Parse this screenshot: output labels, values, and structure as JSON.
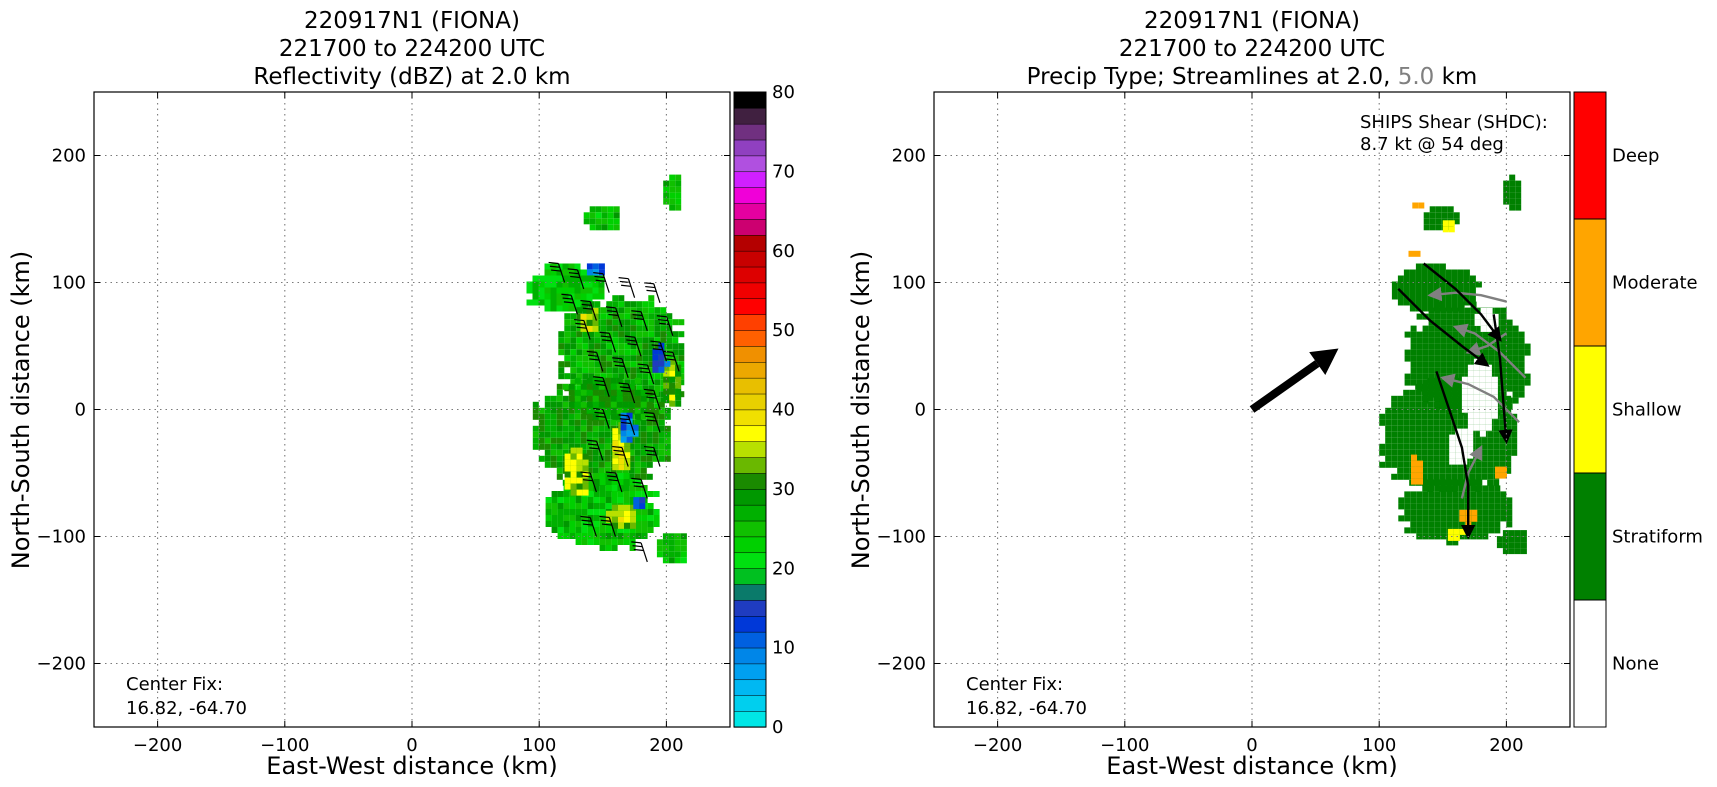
{
  "chart_data": [
    {
      "type": "heatmap",
      "title_lines": [
        "220917N1 (FIONA)",
        "221700 to 224200 UTC",
        "Reflectivity (dBZ) at 2.0 km"
      ],
      "xlabel": "East-West distance (km)",
      "ylabel": "North-South distance (km)",
      "xlim": [
        -250,
        250
      ],
      "ylim": [
        -250,
        250
      ],
      "xticks": [
        -200,
        -100,
        0,
        100,
        200
      ],
      "yticks": [
        -200,
        -100,
        0,
        100,
        200
      ],
      "xtick_labels": [
        "−200",
        "−100",
        "0",
        "100",
        "200"
      ],
      "ytick_labels": [
        "−200",
        "−100",
        "0",
        "100",
        "200"
      ],
      "grid": true,
      "annotation": [
        "Center Fix:",
        "16.82, -64.70"
      ],
      "colorbar": {
        "range": [
          0,
          80
        ],
        "ticks": [
          0,
          10,
          20,
          30,
          40,
          50,
          60,
          70,
          80
        ],
        "tick_labels": [
          "0",
          "10",
          "20",
          "30",
          "40",
          "50",
          "60",
          "70",
          "80"
        ],
        "colors": [
          "#00e6e6",
          "#00cfee",
          "#00b8f2",
          "#00a0f0",
          "#0086e8",
          "#0060e0",
          "#0038d8",
          "#1f3cc0",
          "#0a7a6a",
          "#00c020",
          "#00e010",
          "#00d000",
          "#10c000",
          "#00b000",
          "#009800",
          "#1a8a00",
          "#6ab800",
          "#b8e000",
          "#ffff00",
          "#f0e000",
          "#e8d000",
          "#e8bf00",
          "#eca800",
          "#f09000",
          "#ff6000",
          "#ff4000",
          "#ff0000",
          "#f00000",
          "#dd0000",
          "#c80000",
          "#b40000",
          "#cc0070",
          "#e400a0",
          "#f000d8",
          "#d020ff",
          "#b050e0",
          "#9040c0",
          "#703080",
          "#402040",
          "#000000"
        ]
      },
      "echo_field": [
        {
          "x": 150,
          "y": 150,
          "w": 30,
          "h": 20,
          "dbz": 25
        },
        {
          "x": 205,
          "y": 170,
          "w": 15,
          "h": 30,
          "dbz": 25
        },
        {
          "x": 120,
          "y": 95,
          "w": 60,
          "h": 40,
          "dbz": 24
        },
        {
          "x": 165,
          "y": 40,
          "w": 100,
          "h": 100,
          "dbz": 27
        },
        {
          "x": 150,
          "y": -20,
          "w": 110,
          "h": 90,
          "dbz": 28
        },
        {
          "x": 150,
          "y": -80,
          "w": 90,
          "h": 60,
          "dbz": 25
        },
        {
          "x": 205,
          "y": -110,
          "w": 25,
          "h": 25,
          "dbz": 25
        },
        {
          "x": 165,
          "y": -30,
          "w": 15,
          "h": 40,
          "dbz": 36
        },
        {
          "x": 130,
          "y": -50,
          "w": 20,
          "h": 40,
          "dbz": 34
        },
        {
          "x": 165,
          "y": -85,
          "w": 25,
          "h": 20,
          "dbz": 35
        },
        {
          "x": 140,
          "y": 70,
          "w": 15,
          "h": 20,
          "dbz": 35
        },
        {
          "x": 205,
          "y": 20,
          "w": 15,
          "h": 40,
          "dbz": 33
        },
        {
          "x": 170,
          "y": -15,
          "w": 12,
          "h": 25,
          "dbz": 10
        },
        {
          "x": 195,
          "y": 40,
          "w": 12,
          "h": 25,
          "dbz": 12
        },
        {
          "x": 145,
          "y": 110,
          "w": 15,
          "h": 10,
          "dbz": 11
        },
        {
          "x": 180,
          "y": -75,
          "w": 12,
          "h": 12,
          "dbz": 12
        }
      ],
      "wind_barbs": [
        {
          "x": 120,
          "y": 100
        },
        {
          "x": 135,
          "y": 95
        },
        {
          "x": 155,
          "y": 92
        },
        {
          "x": 175,
          "y": 88
        },
        {
          "x": 195,
          "y": 84
        },
        {
          "x": 130,
          "y": 75
        },
        {
          "x": 145,
          "y": 70
        },
        {
          "x": 165,
          "y": 65
        },
        {
          "x": 185,
          "y": 62
        },
        {
          "x": 205,
          "y": 58
        },
        {
          "x": 140,
          "y": 55
        },
        {
          "x": 160,
          "y": 45
        },
        {
          "x": 180,
          "y": 42
        },
        {
          "x": 200,
          "y": 38
        },
        {
          "x": 150,
          "y": 30
        },
        {
          "x": 170,
          "y": 25
        },
        {
          "x": 190,
          "y": 20
        },
        {
          "x": 210,
          "y": 30
        },
        {
          "x": 155,
          "y": 10
        },
        {
          "x": 175,
          "y": 5
        },
        {
          "x": 195,
          "y": 0
        },
        {
          "x": 155,
          "y": -15
        },
        {
          "x": 175,
          "y": -20
        },
        {
          "x": 195,
          "y": -18
        },
        {
          "x": 150,
          "y": -40
        },
        {
          "x": 170,
          "y": -45
        },
        {
          "x": 195,
          "y": -45
        },
        {
          "x": 145,
          "y": -65
        },
        {
          "x": 165,
          "y": -65
        },
        {
          "x": 185,
          "y": -70
        },
        {
          "x": 145,
          "y": -100
        },
        {
          "x": 160,
          "y": -100
        },
        {
          "x": 185,
          "y": -120
        }
      ]
    },
    {
      "type": "heatmap",
      "title_lines": [
        "220917N1 (FIONA)",
        "221700 to 224200 UTC"
      ],
      "title_line3_parts": [
        "Precip Type; Streamlines at 2.0, ",
        "5.0",
        " km"
      ],
      "title_line3_colors": [
        "#000000",
        "#808080",
        "#000000"
      ],
      "xlabel": "East-West distance (km)",
      "ylabel": "North-South distance (km)",
      "xlim": [
        -250,
        250
      ],
      "ylim": [
        -250,
        250
      ],
      "xticks": [
        -200,
        -100,
        0,
        100,
        200
      ],
      "yticks": [
        -200,
        -100,
        0,
        100,
        200
      ],
      "xtick_labels": [
        "−200",
        "−100",
        "0",
        "100",
        "200"
      ],
      "ytick_labels": [
        "−200",
        "−100",
        "0",
        "100",
        "200"
      ],
      "grid": true,
      "annotation": [
        "Center Fix:",
        "16.82, -64.70"
      ],
      "shear_text": [
        "SHIPS Shear (SHDC):",
        "8.7 kt @ 54 deg"
      ],
      "shear_vector": {
        "from": [
          0,
          0
        ],
        "to": [
          68,
          48
        ]
      },
      "colorbar": {
        "categories": [
          "None",
          "Stratiform",
          "Shallow",
          "Moderate",
          "Deep"
        ],
        "colors": [
          "#ffffff",
          "#008000",
          "#ffff00",
          "#ffa500",
          "#ff0000"
        ]
      },
      "precip_field": [
        {
          "x": 150,
          "y": 150,
          "w": 30,
          "h": 20,
          "cat": "Stratiform"
        },
        {
          "x": 205,
          "y": 170,
          "w": 15,
          "h": 30,
          "cat": "Stratiform"
        },
        {
          "x": 145,
          "y": 95,
          "w": 70,
          "h": 40,
          "cat": "Stratiform"
        },
        {
          "x": 170,
          "y": 40,
          "w": 100,
          "h": 90,
          "cat": "Stratiform"
        },
        {
          "x": 155,
          "y": -20,
          "w": 110,
          "h": 90,
          "cat": "Stratiform"
        },
        {
          "x": 160,
          "y": -80,
          "w": 90,
          "h": 50,
          "cat": "Stratiform"
        },
        {
          "x": 205,
          "y": -105,
          "w": 25,
          "h": 20,
          "cat": "Stratiform"
        },
        {
          "x": 180,
          "y": 10,
          "w": 30,
          "h": 60,
          "cat": "None"
        },
        {
          "x": 165,
          "y": -30,
          "w": 20,
          "h": 30,
          "cat": "None"
        },
        {
          "x": 185,
          "y": 70,
          "w": 20,
          "h": 20,
          "cat": "None"
        },
        {
          "x": 130,
          "y": -48,
          "w": 10,
          "h": 25,
          "cat": "Moderate"
        },
        {
          "x": 170,
          "y": -85,
          "w": 14,
          "h": 12,
          "cat": "Moderate"
        },
        {
          "x": 195,
          "y": -50,
          "w": 8,
          "h": 10,
          "cat": "Moderate"
        },
        {
          "x": 127,
          "y": 122,
          "w": 8,
          "h": 6,
          "cat": "Moderate"
        },
        {
          "x": 160,
          "y": -98,
          "w": 12,
          "h": 8,
          "cat": "Shallow"
        },
        {
          "x": 130,
          "y": 160,
          "w": 8,
          "h": 6,
          "cat": "Moderate"
        },
        {
          "x": 155,
          "y": 145,
          "w": 10,
          "h": 8,
          "cat": "Shallow"
        }
      ],
      "streamlines_2km": [
        [
          [
            135,
            115
          ],
          [
            160,
            95
          ],
          [
            180,
            75
          ],
          [
            195,
            55
          ]
        ],
        [
          [
            115,
            95
          ],
          [
            140,
            70
          ],
          [
            165,
            50
          ],
          [
            185,
            35
          ]
        ],
        [
          [
            145,
            30
          ],
          [
            155,
            0
          ],
          [
            165,
            -30
          ],
          [
            170,
            -60
          ],
          [
            170,
            -100
          ]
        ],
        [
          [
            190,
            75
          ],
          [
            195,
            40
          ],
          [
            198,
            0
          ],
          [
            200,
            -25
          ]
        ]
      ],
      "streamlines_5km": [
        [
          [
            200,
            85
          ],
          [
            180,
            90
          ],
          [
            160,
            92
          ],
          [
            140,
            90
          ]
        ],
        [
          [
            215,
            25
          ],
          [
            195,
            45
          ],
          [
            175,
            60
          ],
          [
            160,
            65
          ]
        ],
        [
          [
            210,
            -10
          ],
          [
            190,
            10
          ],
          [
            170,
            20
          ],
          [
            150,
            25
          ]
        ],
        [
          [
            165,
            -70
          ],
          [
            170,
            -50
          ],
          [
            180,
            -30
          ]
        ],
        [
          [
            200,
            60
          ],
          [
            185,
            50
          ],
          [
            170,
            45
          ]
        ]
      ]
    }
  ]
}
